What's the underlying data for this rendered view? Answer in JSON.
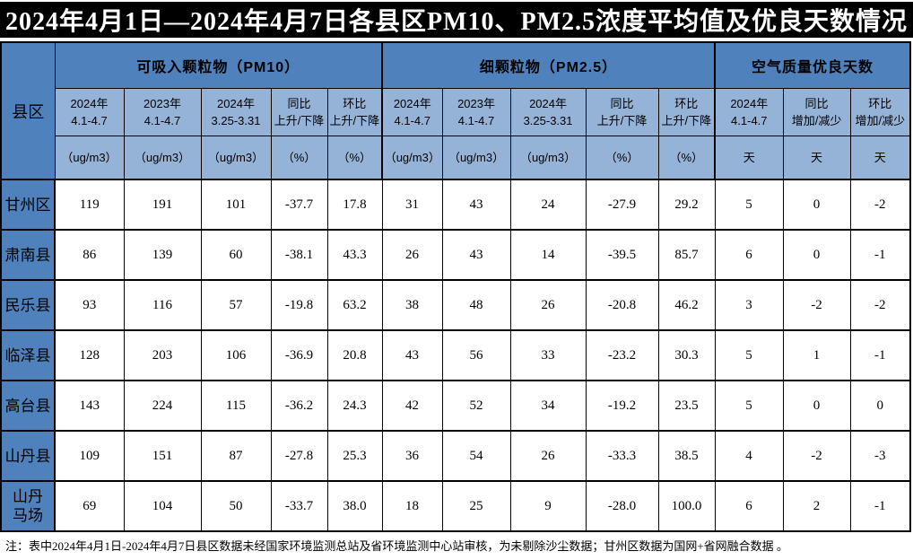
{
  "title": "2024年4月1日—2024年4月7日各县区PM10、PM2.5浓度平均值及优良天数情况",
  "colors": {
    "title_bg": "#000000",
    "title_fg": "#FFFFFF",
    "header_dark_blue": "#4F81BD",
    "header_light_blue": "#95B3D7",
    "border": "#000000",
    "left_edge_green": "#4a9b4f"
  },
  "table": {
    "corner_label": "县区",
    "groups": [
      {
        "label": "可吸入颗粒物（PM10）"
      },
      {
        "label": "细颗粒物（PM2.5）"
      },
      {
        "label": "空气质量优良天数"
      }
    ],
    "columns": [
      {
        "period": "2024年\n4.1-4.7",
        "unit": "（ug/m3）"
      },
      {
        "period": "2023年\n4.1-4.7",
        "unit": "（ug/m3）"
      },
      {
        "period": "2024年\n3.25-3.31",
        "unit": "（ug/m3）"
      },
      {
        "period": "同比\n上升/下降",
        "unit": "（%）"
      },
      {
        "period": "环比\n上升/下降",
        "unit": "（%）"
      },
      {
        "period": "2024年\n4.1-4.7",
        "unit": "（ug/m3）"
      },
      {
        "period": "2023年\n4.1-4.7",
        "unit": "（ug/m3）"
      },
      {
        "period": "2024年\n3.25-3.31",
        "unit": "（ug/m3）"
      },
      {
        "period": "同比\n上升/下降",
        "unit": "（%）"
      },
      {
        "period": "环比\n上升/下降",
        "unit": "（%）"
      },
      {
        "period": "2024年\n4.1-4.7",
        "unit": "天"
      },
      {
        "period": "同比\n增加/减少",
        "unit": "天"
      },
      {
        "period": "环比\n增加/减少",
        "unit": "天"
      }
    ],
    "rows": [
      {
        "name": "甘州区",
        "values": [
          "119",
          "191",
          "101",
          "-37.7",
          "17.8",
          "31",
          "43",
          "24",
          "-27.9",
          "29.2",
          "5",
          "0",
          "-2"
        ]
      },
      {
        "name": "肃南县",
        "values": [
          "86",
          "139",
          "60",
          "-38.1",
          "43.3",
          "26",
          "43",
          "14",
          "-39.5",
          "85.7",
          "6",
          "0",
          "-1"
        ]
      },
      {
        "name": "民乐县",
        "values": [
          "93",
          "116",
          "57",
          "-19.8",
          "63.2",
          "38",
          "48",
          "26",
          "-20.8",
          "46.2",
          "3",
          "-2",
          "-2"
        ]
      },
      {
        "name": "临泽县",
        "values": [
          "128",
          "203",
          "106",
          "-36.9",
          "20.8",
          "43",
          "56",
          "33",
          "-23.2",
          "30.3",
          "5",
          "1",
          "-1"
        ]
      },
      {
        "name": "高台县",
        "values": [
          "143",
          "224",
          "115",
          "-36.2",
          "24.3",
          "42",
          "52",
          "34",
          "-19.2",
          "23.5",
          "5",
          "0",
          "0"
        ]
      },
      {
        "name": "山丹县",
        "values": [
          "109",
          "151",
          "87",
          "-27.8",
          "25.3",
          "36",
          "54",
          "26",
          "-33.3",
          "38.5",
          "4",
          "-2",
          "-3"
        ]
      },
      {
        "name": "山丹\n马场",
        "values": [
          "69",
          "104",
          "50",
          "-33.7",
          "38.0",
          "18",
          "25",
          "9",
          "-28.0",
          "100.0",
          "6",
          "2",
          "-1"
        ]
      }
    ]
  },
  "footnote": "注：表中2024年4月1日-2024年4月7日县区数据未经国家环境监测总站及省环境监测中心站审核，为未剔除沙尘数据；甘州区数据为国网+省网融合数据 。"
}
